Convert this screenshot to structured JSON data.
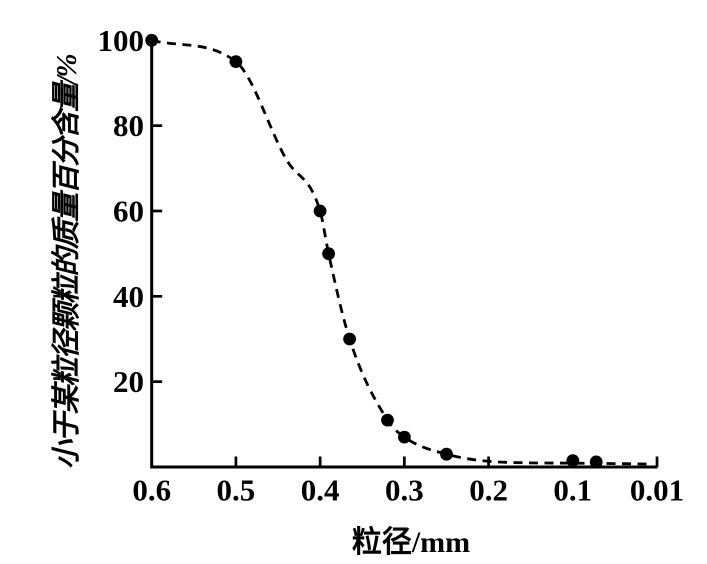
{
  "figure": {
    "background": "#ffffff",
    "ink": "#000000"
  },
  "chart_data": {
    "type": "line",
    "subtype": "cumulative grain-size distribution curve (dashed line with filled circle markers)",
    "title": "",
    "xlabel": "粒径/mm",
    "ylabel": "小于某粒径颗粒的质量百分含量/%",
    "x_tick_labels": [
      "0.6",
      "0.5",
      "0.4",
      "0.3",
      "0.2",
      "0.1",
      "0.01"
    ],
    "x_axis_reversed": true,
    "x_axis_note": "linear from 0.6 to 0.1 in 0.1 steps; final equal-width division spans 0.1 to 0.01",
    "y_tick_labels": [
      "100",
      "80",
      "60",
      "40",
      "20"
    ],
    "y_tick_values": [
      100,
      80,
      60,
      40,
      20
    ],
    "y_tick_marks": [
      80,
      60,
      40,
      20
    ],
    "ylim": [
      0,
      100
    ],
    "grid": false,
    "legend": null,
    "series": [
      {
        "name": "小于某粒径颗粒的质量百分含量",
        "marker": "filled-circle",
        "line_style": "dashed",
        "color": "#000000",
        "points": [
          {
            "d_mm": 0.6,
            "pct": 100
          },
          {
            "d_mm": 0.5,
            "pct": 95
          },
          {
            "d_mm": 0.4,
            "pct": 60
          },
          {
            "d_mm": 0.39,
            "pct": 50
          },
          {
            "d_mm": 0.365,
            "pct": 30
          },
          {
            "d_mm": 0.32,
            "pct": 11
          },
          {
            "d_mm": 0.3,
            "pct": 7
          },
          {
            "d_mm": 0.25,
            "pct": 3
          },
          {
            "d_mm": 0.1,
            "pct": 1.5
          },
          {
            "d_mm": 0.075,
            "pct": 1.2
          }
        ],
        "trend_points": [
          [
            0.6,
            100
          ],
          [
            0.5,
            95
          ],
          [
            0.44,
            72
          ],
          [
            0.4,
            60
          ],
          [
            0.39,
            50
          ],
          [
            0.365,
            30
          ],
          [
            0.32,
            11
          ],
          [
            0.3,
            7
          ],
          [
            0.25,
            3
          ],
          [
            0.18,
            1.1
          ],
          [
            0.1,
            0.9
          ],
          [
            0.075,
            0.85
          ],
          [
            0.018,
            0.7
          ]
        ]
      }
    ]
  }
}
